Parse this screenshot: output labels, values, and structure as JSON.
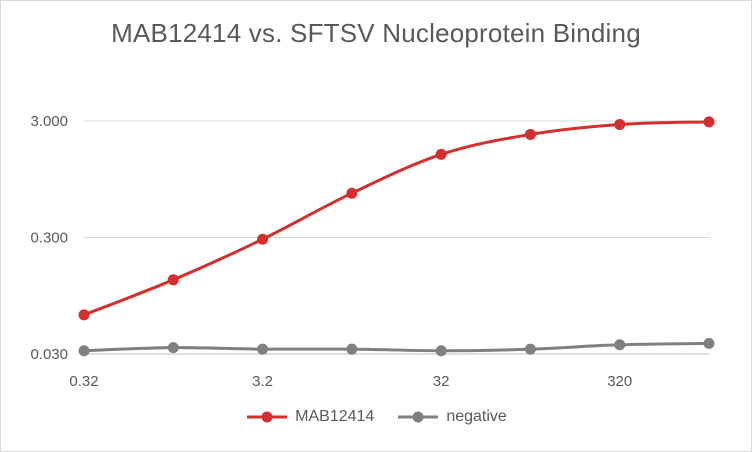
{
  "chart_data": {
    "type": "line",
    "title": "MAB12414 vs. SFTSV Nucleoprotein Binding",
    "xlabel": "",
    "ylabel": "",
    "x_scale": "log",
    "y_scale": "log",
    "x_tick_labels": [
      "0.32",
      "3.2",
      "32",
      "320"
    ],
    "y_tick_labels": [
      "0.030",
      "0.300",
      "3.000"
    ],
    "x": [
      0.32,
      1.0,
      3.2,
      10,
      32,
      100,
      320,
      1000
    ],
    "ylim": [
      0.03,
      3.0
    ],
    "grid": "horizontal",
    "legend_position": "bottom",
    "series": [
      {
        "name": "MAB12414",
        "color": "#d32f2f",
        "values": [
          0.065,
          0.13,
          0.29,
          0.72,
          1.55,
          2.3,
          2.8,
          2.95
        ]
      },
      {
        "name": "negative",
        "color": "#808080",
        "values": [
          0.032,
          0.034,
          0.033,
          0.033,
          0.032,
          0.033,
          0.036,
          0.037
        ]
      }
    ]
  }
}
